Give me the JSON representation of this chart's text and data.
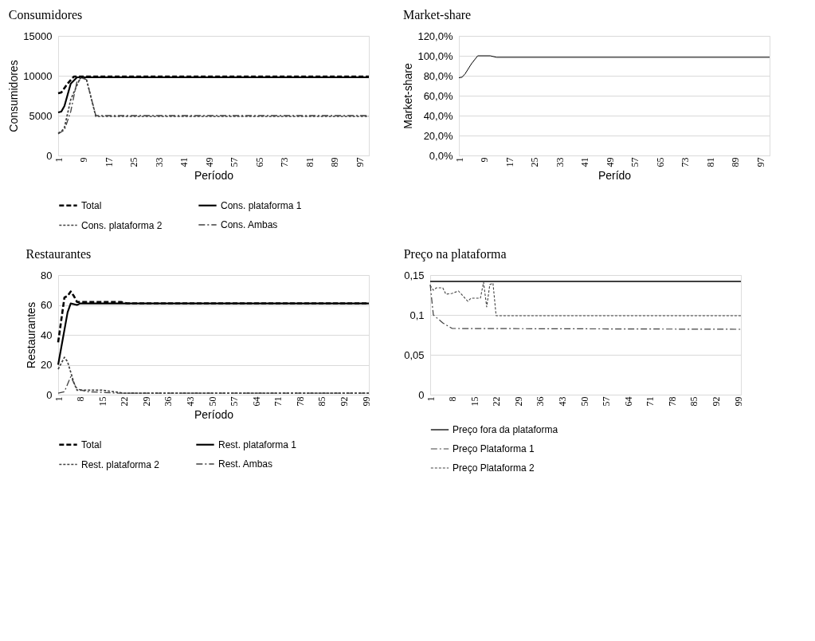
{
  "chart_data": [
    {
      "type": "line",
      "title": "Consumidores",
      "xlabel": "Período",
      "ylabel": "Consumidores",
      "xlim": [
        1,
        100
      ],
      "xticks": [
        1,
        9,
        17,
        25,
        33,
        41,
        49,
        57,
        65,
        73,
        81,
        89,
        97
      ],
      "ylim": [
        0,
        15000
      ],
      "yticks": [
        0,
        5000,
        10000,
        15000
      ],
      "grid": "y",
      "legend": "bottom",
      "marker": "none",
      "series": [
        {
          "name": "Total",
          "color": "#000000",
          "line_style": "dashed",
          "x": [
            1,
            2,
            4,
            6,
            7,
            100
          ],
          "values": [
            7800,
            7900,
            9000,
            9900,
            9900,
            9900
          ]
        },
        {
          "name": "Cons. plataforma 1",
          "color": "#000000",
          "line_style": "solid",
          "x": [
            1,
            2,
            3,
            5,
            7,
            100
          ],
          "values": [
            5400,
            5500,
            6200,
            9000,
            9800,
            9800
          ]
        },
        {
          "name": "Cons. plataforma 2",
          "color": "#404040",
          "line_style": "dotted",
          "x": [
            1,
            2,
            3,
            5,
            8,
            10,
            13,
            100
          ],
          "values": [
            2800,
            3000,
            3500,
            7000,
            9700,
            9600,
            4900,
            4900
          ]
        },
        {
          "name": "Cons. Ambas",
          "color": "#404040",
          "line_style": "dashdot",
          "x": [
            1,
            3,
            5,
            7,
            9,
            10,
            13,
            100
          ],
          "values": [
            2700,
            3200,
            5500,
            9300,
            9700,
            9500,
            5000,
            5000
          ]
        }
      ]
    },
    {
      "type": "line",
      "title": "Market-share",
      "xlabel": "Perído",
      "ylabel": "Market-share",
      "xlim": [
        1,
        100
      ],
      "xticks": [
        1,
        9,
        17,
        25,
        33,
        41,
        49,
        57,
        65,
        73,
        81,
        89,
        97
      ],
      "ylim": [
        0,
        120
      ],
      "yticks": [
        {
          "value": 0,
          "label": "0,0%"
        },
        {
          "value": 20,
          "label": "20,0%"
        },
        {
          "value": 40,
          "label": "40,0%"
        },
        {
          "value": 60,
          "label": "60,0%"
        },
        {
          "value": 80,
          "label": "80,0%"
        },
        {
          "value": 100,
          "label": "100,0%"
        },
        {
          "value": 120,
          "label": "120,0%"
        }
      ],
      "grid": "y",
      "marker": "none",
      "series": [
        {
          "color": "#000000",
          "line_style": "solid",
          "x": [
            1,
            2,
            3,
            5,
            7,
            11,
            13,
            100
          ],
          "values": [
            78,
            78.5,
            82,
            92,
            100,
            100,
            98.5,
            98.5
          ]
        }
      ]
    },
    {
      "type": "line",
      "title": "Restaurantes",
      "xlabel": "Período",
      "ylabel": "Restaurantes",
      "xlim": [
        1,
        100
      ],
      "xticks": [
        1,
        8,
        15,
        22,
        29,
        36,
        43,
        50,
        57,
        64,
        71,
        78,
        85,
        92,
        99
      ],
      "ylim": [
        0,
        80
      ],
      "yticks": [
        0,
        20,
        40,
        60,
        80
      ],
      "grid": "y",
      "legend": "bottom",
      "marker": "none",
      "series": [
        {
          "name": "Total",
          "color": "#000000",
          "line_style": "dashed",
          "x": [
            1,
            3,
            4,
            5,
            6,
            7,
            21,
            23,
            100
          ],
          "values": [
            35,
            65,
            66,
            69,
            66,
            62,
            62,
            61,
            61
          ]
        },
        {
          "name": "Rest. plataforma 1",
          "color": "#000000",
          "line_style": "solid",
          "x": [
            1,
            4,
            5,
            7,
            8,
            100
          ],
          "values": [
            20,
            55,
            61,
            60,
            61,
            61
          ]
        },
        {
          "name": "Rest. plataforma 2",
          "color": "#404040",
          "line_style": "dotted",
          "x": [
            1,
            3,
            4,
            6,
            7,
            15,
            22,
            100
          ],
          "values": [
            17,
            25,
            22,
            8,
            3,
            3,
            1,
            1
          ]
        },
        {
          "name": "Rest. Ambas",
          "color": "#404040",
          "line_style": "dashdot",
          "x": [
            1,
            3,
            5,
            7,
            10,
            20,
            100
          ],
          "values": [
            1,
            2,
            12,
            4,
            2,
            1,
            1
          ]
        }
      ]
    },
    {
      "type": "line",
      "title": "Preço na plataforma",
      "xlim": [
        1,
        100
      ],
      "xticks": [
        1,
        8,
        15,
        22,
        29,
        36,
        43,
        50,
        57,
        64,
        71,
        78,
        85,
        92,
        99
      ],
      "ylim": [
        0,
        0.15
      ],
      "yticks": [
        0,
        {
          "value": 0.05,
          "label": "0,05"
        },
        {
          "value": 0.1,
          "label": "0,1"
        },
        {
          "value": 0.15,
          "label": "0,15"
        }
      ],
      "grid": "y",
      "legend": "bottom",
      "marker": "none",
      "series": [
        {
          "name": "Preço fora da plataforma",
          "color": "#000000",
          "line_style": "solid",
          "x": [
            1,
            100
          ],
          "values": [
            0.142,
            0.142
          ]
        },
        {
          "name": "Preço Plataforma 1",
          "color": "#404040",
          "line_style": "dashdot",
          "x": [
            1,
            2,
            5,
            8,
            100
          ],
          "values": [
            0.138,
            0.1,
            0.09,
            0.083,
            0.082
          ]
        },
        {
          "name": "Preço Plataforma 2",
          "color": "#404040",
          "line_style": "dotted",
          "x": [
            1,
            2,
            3,
            5,
            6,
            8,
            10,
            13,
            14,
            17,
            18,
            19,
            20,
            21,
            22,
            100
          ],
          "values": [
            0.137,
            0.131,
            0.134,
            0.134,
            0.126,
            0.127,
            0.13,
            0.117,
            0.121,
            0.121,
            0.141,
            0.11,
            0.138,
            0.14,
            0.099,
            0.099
          ]
        }
      ]
    }
  ]
}
